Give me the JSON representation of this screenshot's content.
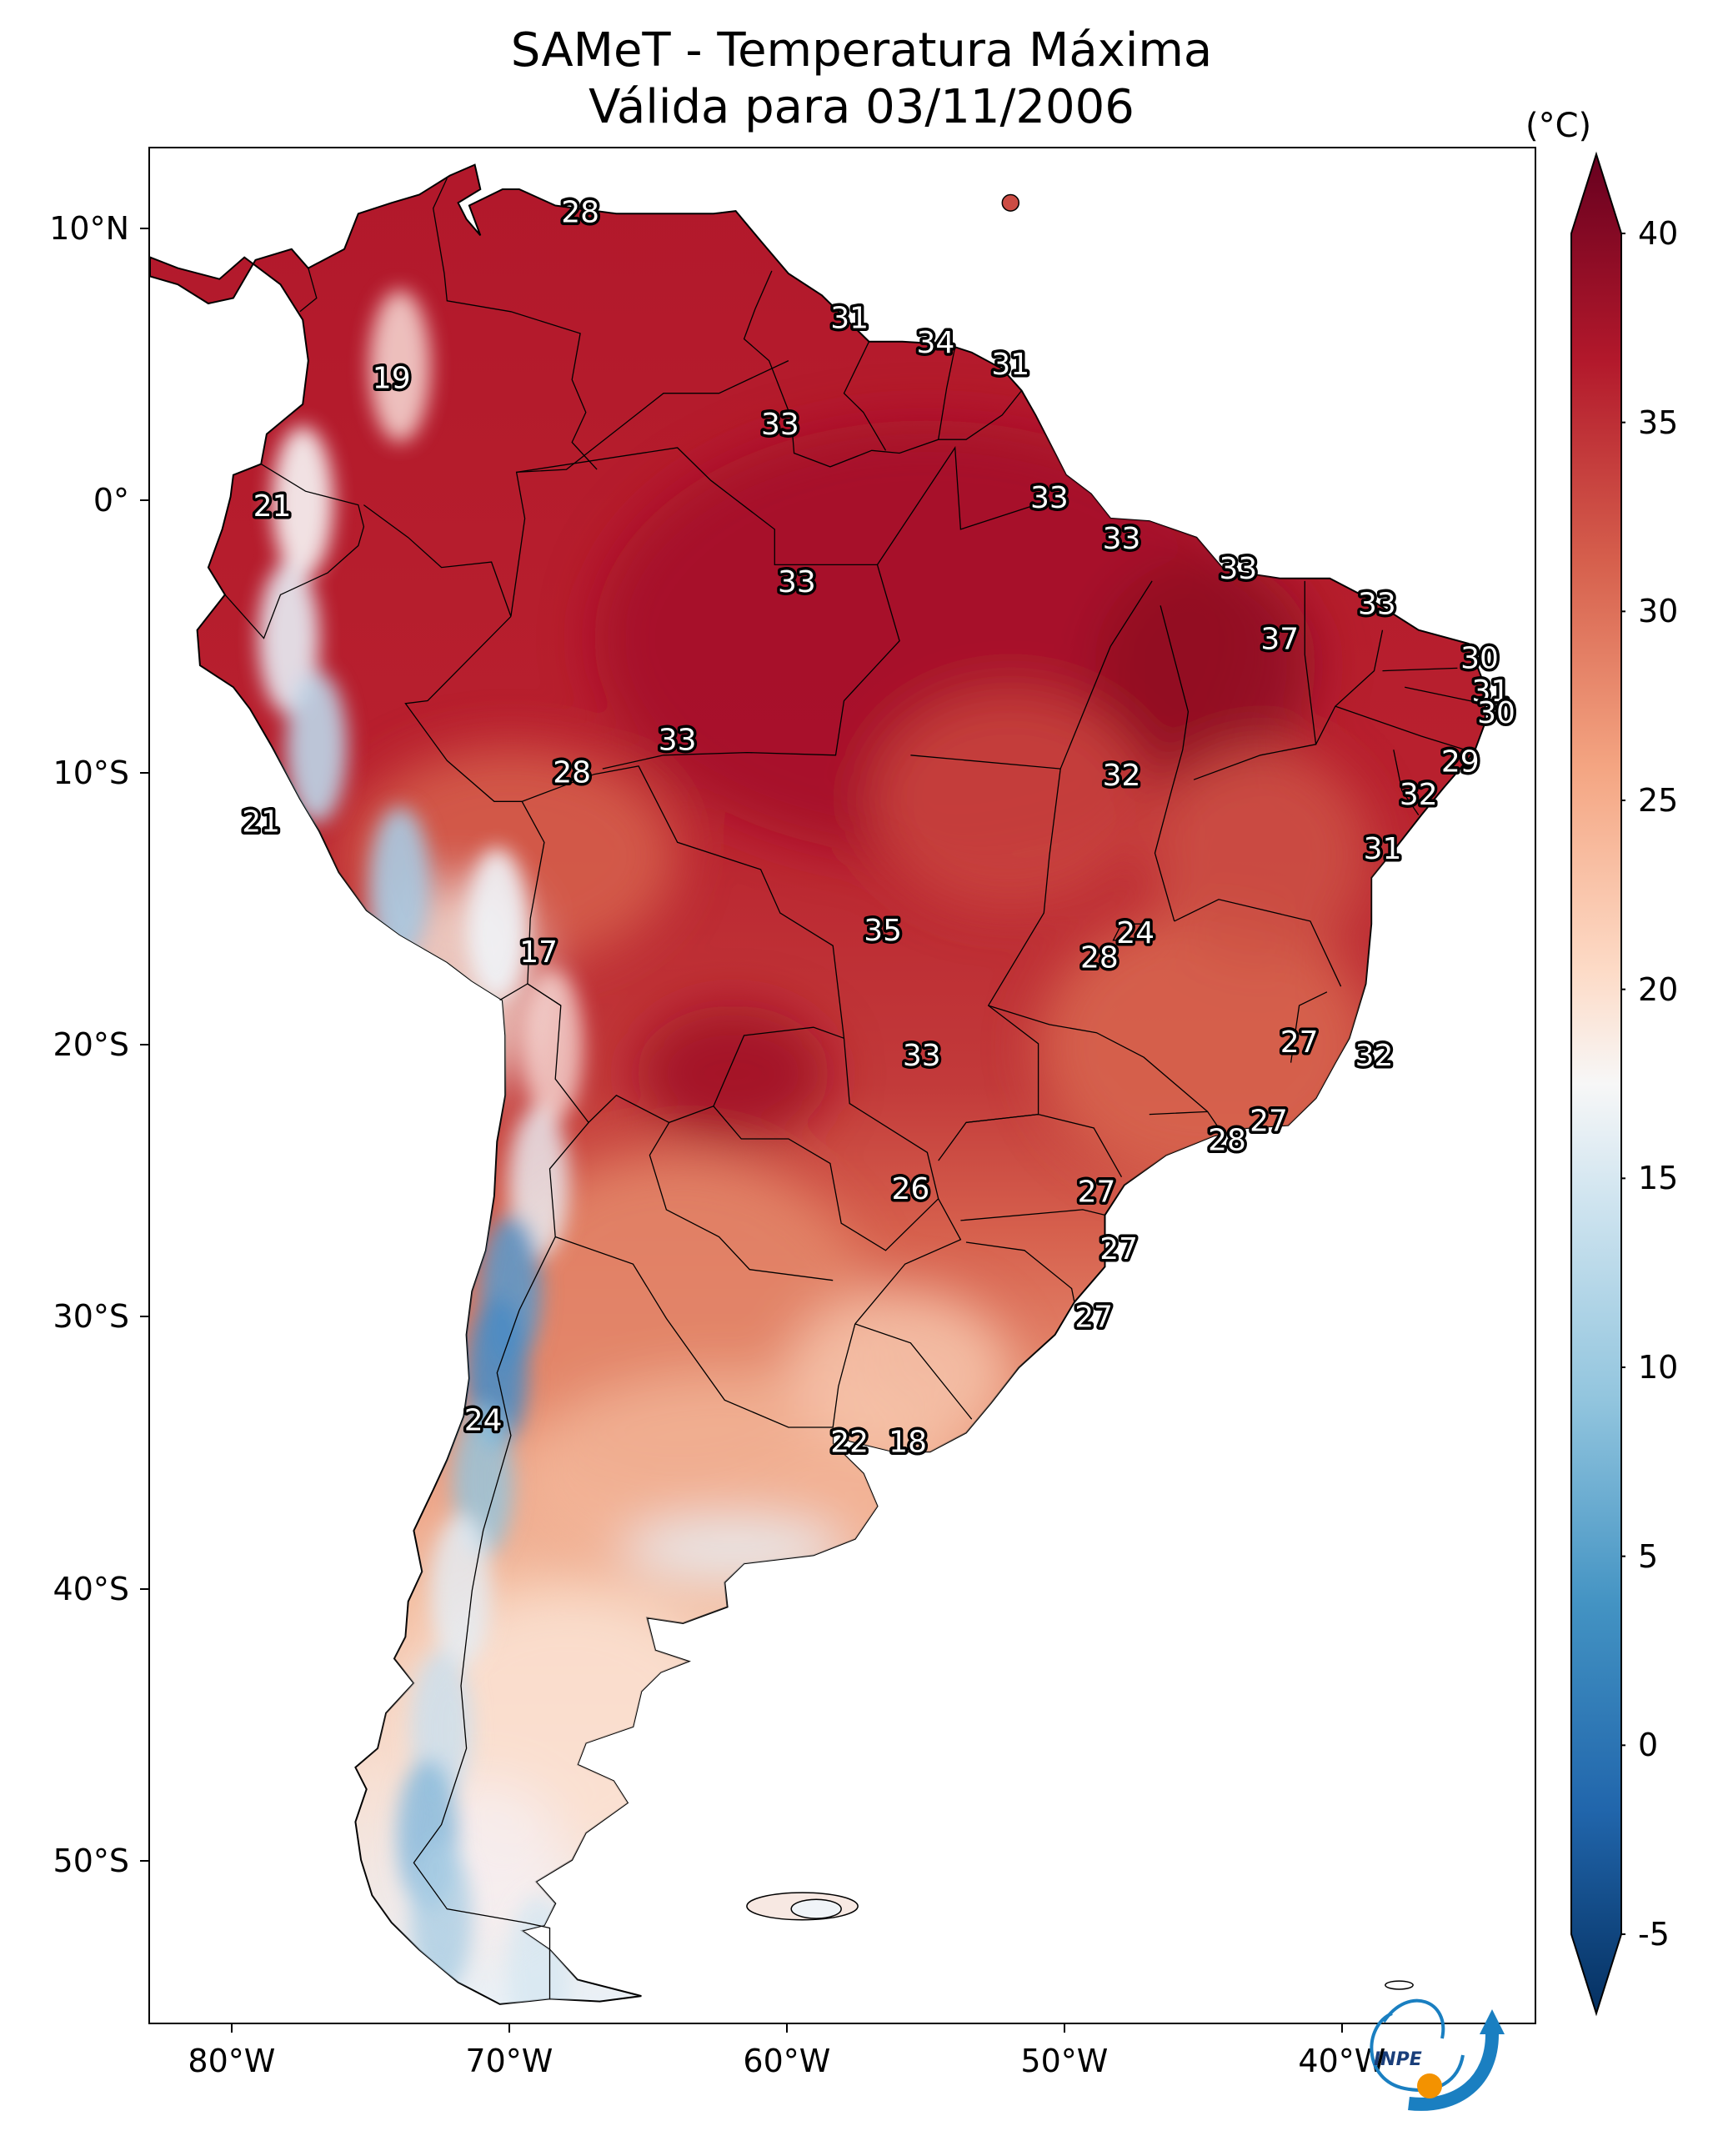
{
  "title": {
    "line1": "SAMeT - Temperatura Máxima",
    "line2": "Válida para 03/11/2006"
  },
  "map": {
    "projection": "PlateCarree",
    "lon_range": [
      -83,
      -33
    ],
    "lat_range": [
      -56,
      13
    ],
    "lat_ticks": [
      {
        "value": 10,
        "label": "10°N"
      },
      {
        "value": 0,
        "label": "0°"
      },
      {
        "value": -10,
        "label": "10°S"
      },
      {
        "value": -20,
        "label": "20°S"
      },
      {
        "value": -30,
        "label": "30°S"
      },
      {
        "value": -40,
        "label": "40°S"
      },
      {
        "value": -50,
        "label": "50°S"
      }
    ],
    "lon_ticks": [
      {
        "value": -80,
        "label": "80°W"
      },
      {
        "value": -70,
        "label": "70°W"
      },
      {
        "value": -60,
        "label": "60°W"
      },
      {
        "value": -50,
        "label": "50°W"
      },
      {
        "value": -40,
        "label": "40°W"
      }
    ],
    "field_colormap": "RdBu_r",
    "annotations": [
      {
        "lon": -67.5,
        "lat": 10.6,
        "text": "28"
      },
      {
        "lon": -74.3,
        "lat": 4.5,
        "text": "19"
      },
      {
        "lon": -78.6,
        "lat": -0.2,
        "text": "21"
      },
      {
        "lon": -57.8,
        "lat": 6.7,
        "text": "31"
      },
      {
        "lon": -54.7,
        "lat": 5.8,
        "text": "34"
      },
      {
        "lon": -52.0,
        "lat": 5.0,
        "text": "31"
      },
      {
        "lon": -60.3,
        "lat": 2.8,
        "text": "33"
      },
      {
        "lon": -50.6,
        "lat": 0.1,
        "text": "33"
      },
      {
        "lon": -48.0,
        "lat": -1.4,
        "text": "33"
      },
      {
        "lon": -43.8,
        "lat": -2.5,
        "text": "33"
      },
      {
        "lon": -59.7,
        "lat": -3.0,
        "text": "33"
      },
      {
        "lon": -38.8,
        "lat": -3.8,
        "text": "33"
      },
      {
        "lon": -42.3,
        "lat": -5.1,
        "text": "37"
      },
      {
        "lon": -35.1,
        "lat": -5.8,
        "text": "30"
      },
      {
        "lon": -34.7,
        "lat": -7.0,
        "text": "31"
      },
      {
        "lon": -34.5,
        "lat": -7.8,
        "text": "30"
      },
      {
        "lon": -35.8,
        "lat": -9.6,
        "text": "29"
      },
      {
        "lon": -37.3,
        "lat": -10.8,
        "text": "32"
      },
      {
        "lon": -64.0,
        "lat": -8.8,
        "text": "33"
      },
      {
        "lon": -67.8,
        "lat": -10.0,
        "text": "28"
      },
      {
        "lon": -48.0,
        "lat": -10.1,
        "text": "32"
      },
      {
        "lon": -79.0,
        "lat": -11.8,
        "text": "21"
      },
      {
        "lon": -38.6,
        "lat": -12.8,
        "text": "31"
      },
      {
        "lon": -56.6,
        "lat": -15.8,
        "text": "35"
      },
      {
        "lon": -47.5,
        "lat": -15.9,
        "text": "24"
      },
      {
        "lon": -48.8,
        "lat": -16.8,
        "text": "28"
      },
      {
        "lon": -69.0,
        "lat": -16.6,
        "text": "17"
      },
      {
        "lon": -41.6,
        "lat": -19.9,
        "text": "27"
      },
      {
        "lon": -38.9,
        "lat": -20.4,
        "text": "32"
      },
      {
        "lon": -55.2,
        "lat": -20.4,
        "text": "33"
      },
      {
        "lon": -42.7,
        "lat": -22.8,
        "text": "27"
      },
      {
        "lon": -44.2,
        "lat": -23.5,
        "text": "28"
      },
      {
        "lon": -55.6,
        "lat": -25.3,
        "text": "26"
      },
      {
        "lon": -48.9,
        "lat": -25.4,
        "text": "27"
      },
      {
        "lon": -48.1,
        "lat": -27.5,
        "text": "27"
      },
      {
        "lon": -49.0,
        "lat": -30.0,
        "text": "27"
      },
      {
        "lon": -71.0,
        "lat": -33.8,
        "text": "24"
      },
      {
        "lon": -57.8,
        "lat": -34.6,
        "text": "22"
      },
      {
        "lon": -55.7,
        "lat": -34.6,
        "text": "18"
      }
    ]
  },
  "colorbar": {
    "unit": "(°C)",
    "min": -5,
    "max": 40,
    "extend": "both",
    "ticks": [
      "40",
      "35",
      "30",
      "25",
      "20",
      "15",
      "10",
      "5",
      "0",
      "-5"
    ],
    "tick_values": [
      40,
      35,
      30,
      25,
      20,
      15,
      10,
      5,
      0,
      -5
    ]
  },
  "logo": {
    "text": "INPE"
  },
  "colors": {
    "hot": "#b2182b",
    "warm": "#d6604d",
    "mild": "#f4a582",
    "neutral": "#f7f7f7",
    "cool": "#92c5de",
    "cold": "#2166ac",
    "logo_blue": "#1a7fc1",
    "logo_orange": "#f39200"
  }
}
